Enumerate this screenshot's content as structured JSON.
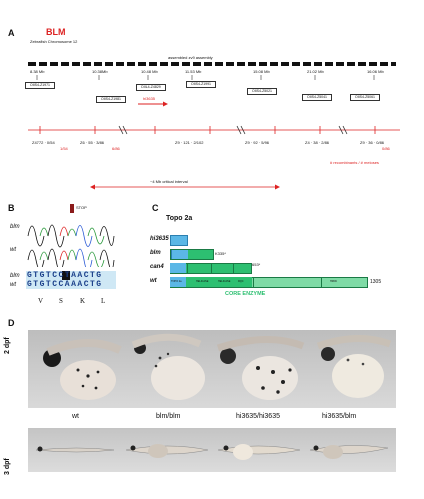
{
  "panels": {
    "a": "A",
    "b": "B",
    "c": "C",
    "d": "D"
  },
  "panelA": {
    "gene": "BLM",
    "chromosome": "Zebrafish Chromosome 12",
    "assembly": "assembled zv9 assembly",
    "positions": [
      "8.38 Mb",
      "10.38Mb",
      "10.48 Mb",
      "11.53 Mb",
      "15.08 Mb",
      "21.02 Mb",
      "16.06 Mb"
    ],
    "genes_top": [
      "OIIS4-Z1971",
      "OIIS4-Z1981",
      "DIIL4-Z4829",
      "OIIS4-Z1991",
      "OIIS4-Z5021",
      "OIIS4-Z5041",
      "OIIS4-Z5061"
    ],
    "arrow_label": "hi3635",
    "markers": [
      "Z4772 · 0/54",
      "Z6 · 55 · 3/86",
      "Z9 · 121 · 2/102",
      "Z9 · 92 · 5/96",
      "Z4 · 38 · 2/86",
      "Z9 · 36 · 0/86"
    ],
    "marker_values": [
      "1/54",
      "6/86",
      "0/86"
    ],
    "interval_note": "~4 Mb critical interval",
    "recombinants_note": "# recombinants / # meioses"
  },
  "panelB": {
    "stop_label": "STOP",
    "traces": [
      "blm",
      "wt"
    ],
    "seq_labels": [
      "blm",
      "wt"
    ],
    "seq_blm": "GTGTCCTAACTG",
    "seq_wt": "GTGTCCAAACTG",
    "amino_acids": [
      "V",
      "S",
      "K",
      "L"
    ]
  },
  "panelC": {
    "title": "Topo 2a",
    "rows": [
      "hi3635",
      "blm",
      "can4",
      "wt"
    ],
    "mutations": [
      "K335*",
      "653*"
    ],
    "wt_length": "1305",
    "domain_labels": [
      "TOPO 2a",
      "HELICASE",
      "HELICASE",
      "RQC",
      "HRDC"
    ],
    "core": "CORE ENZYME"
  },
  "panelD": {
    "row1": "2 dpf",
    "row2": "3 dpf",
    "genotypes": [
      "wt",
      "blm/blm",
      "hi3635/hi3635",
      "hi3635/blm"
    ]
  }
}
